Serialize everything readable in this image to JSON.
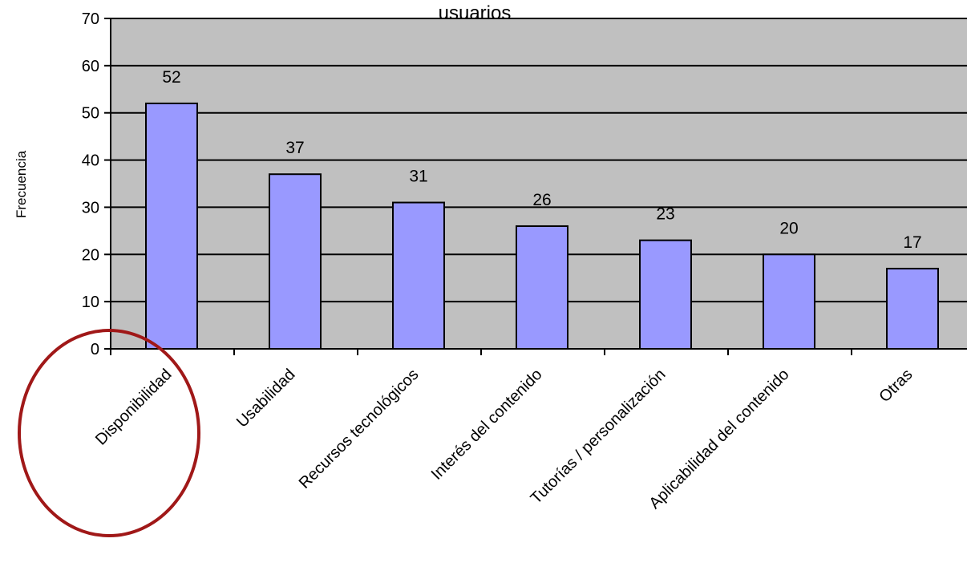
{
  "chart_data": {
    "type": "bar",
    "title": "usuarios",
    "xlabel": "",
    "ylabel": "Frecuencia",
    "categories": [
      "Disponibilidad",
      "Usabilidad",
      "Recursos tecnológicos",
      "Interés del contenido",
      "Tutorías / personalización",
      "Aplicabilidad del contenido",
      "Otras"
    ],
    "values": [
      52,
      37,
      31,
      26,
      23,
      20,
      17
    ],
    "ylim": [
      0,
      70
    ],
    "yticks": [
      "0",
      "10",
      "20",
      "30",
      "40",
      "50",
      "60",
      "70"
    ],
    "grid": true,
    "legend": "none",
    "colors": {
      "bar_fill": "#9999ff",
      "plot_background": "#c0c0c0",
      "gridline": "#000000",
      "highlight_circle": "#a01818"
    },
    "annotation": "highlight-circle-around-Disponibilidad"
  }
}
